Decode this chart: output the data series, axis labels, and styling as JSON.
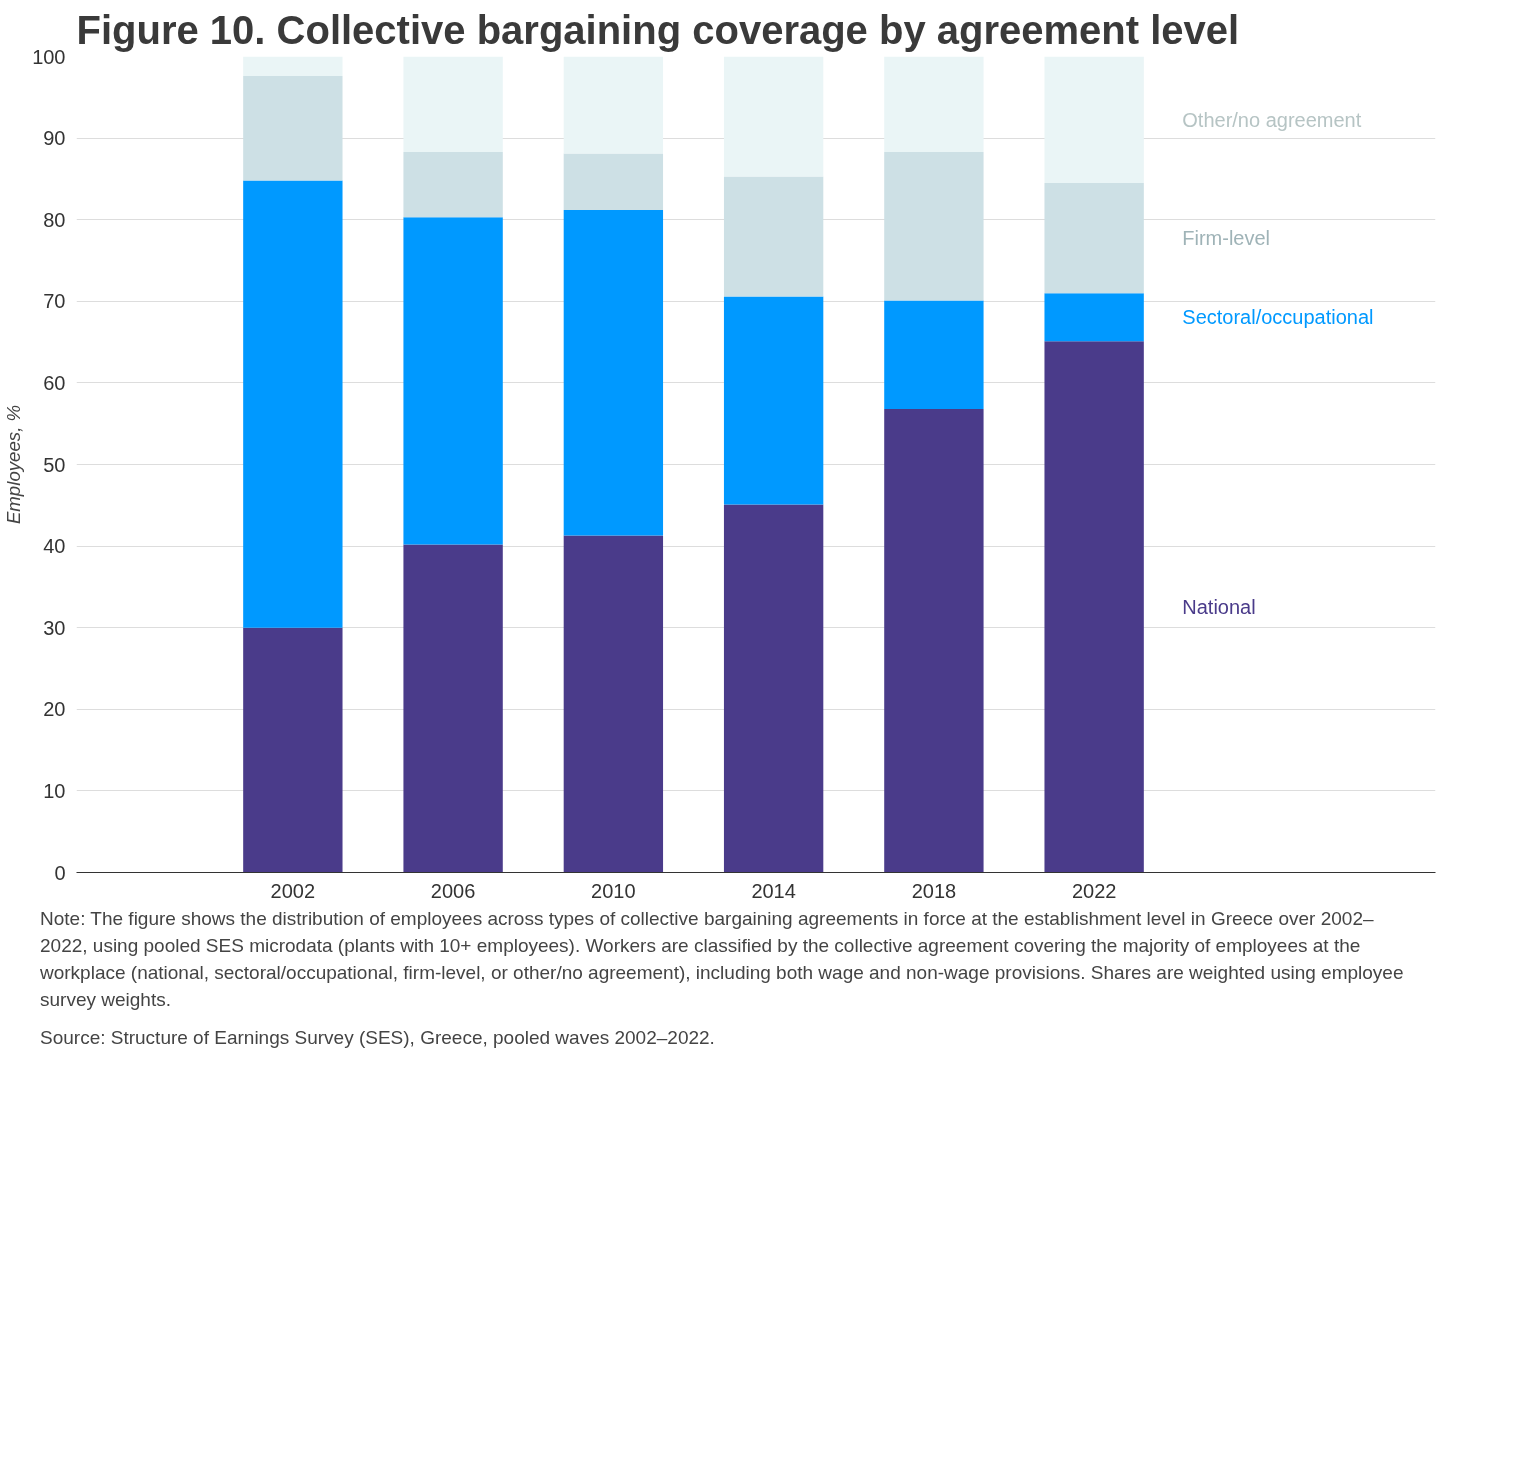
{
  "chart_data": {
    "type": "bar",
    "title": "Figure 10. Collective bargaining coverage by agreement level",
    "ylabel": "Employees, %",
    "categories": [
      "2002",
      "2006",
      "2010",
      "2014",
      "2018",
      "2022"
    ],
    "stacked": true,
    "series": [
      {
        "name": "National",
        "color": "#4a3b8a",
        "values": [
          30.0,
          40.2,
          41.3,
          45.1,
          56.8,
          65.1
        ]
      },
      {
        "name": "Sectoral/occupational",
        "color": "#0099ff",
        "values": [
          54.8,
          40.1,
          39.9,
          25.5,
          13.3,
          5.9
        ]
      },
      {
        "name": "Firm-level",
        "color": "#cde0e5",
        "values": [
          12.8,
          8.0,
          6.9,
          14.7,
          18.2,
          13.5
        ]
      },
      {
        "name": "Other/no agreement",
        "color": "#eaf5f6",
        "values": [
          2.4,
          11.7,
          11.9,
          14.7,
          11.7,
          15.5
        ]
      }
    ],
    "ylim": [
      0,
      100
    ],
    "yticks": [
      0,
      10,
      20,
      30,
      40,
      50,
      60,
      70,
      80,
      90,
      100
    ],
    "grid": "y",
    "annotations": [
      "Note: The figure shows the distribution of employees across types of collective bargaining agreements in force at the establishment level in Greece over 2002–2022, using pooled SES microdata (plants with 10+ employees). Workers are classified by the collective agreement covering the majority of employees at the workplace (national, sectoral/occupational, firm-level, or other/no agreement), including both wage and non-wage provisions. Shares are weighted using employee survey weights.",
      "Source: Structure of Earnings Survey (SES), Greece, pooled waves 2002–2022."
    ]
  }
}
